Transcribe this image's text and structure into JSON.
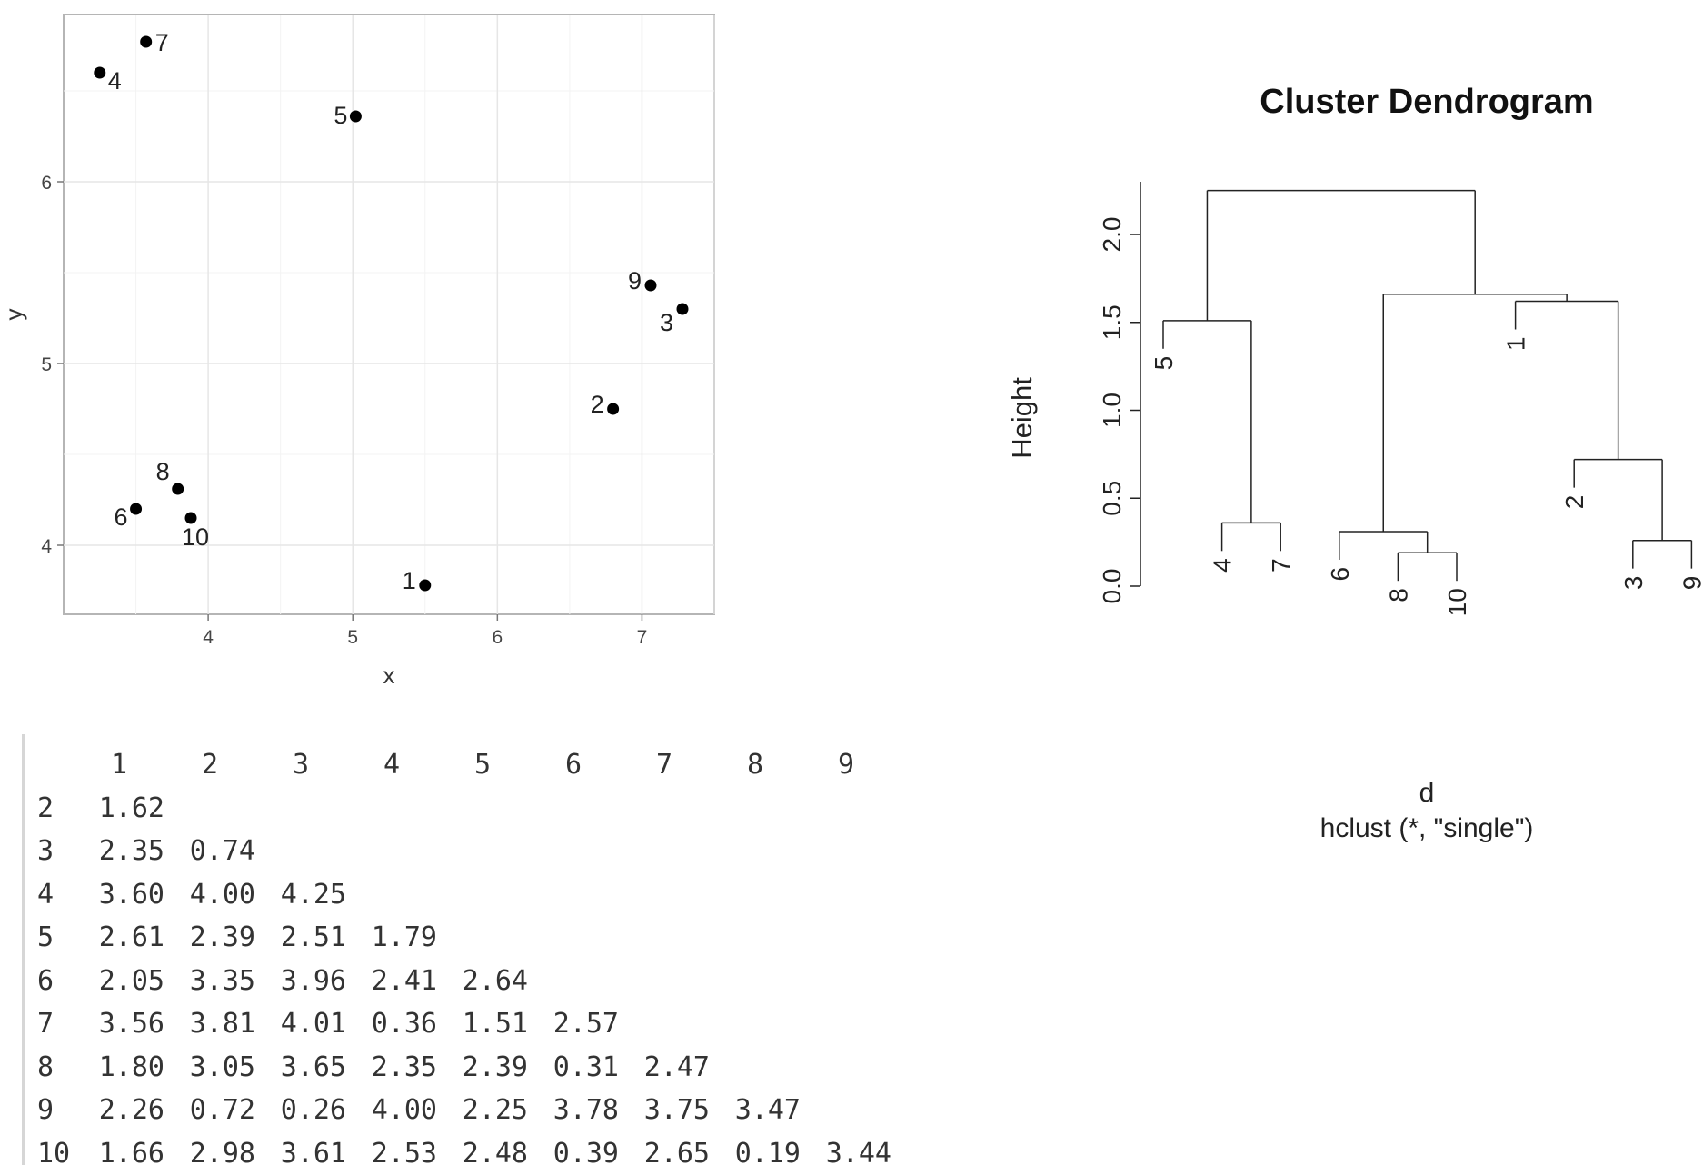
{
  "chart_data": [
    {
      "type": "scatter",
      "xlabel": "x",
      "ylabel": "y",
      "xlim": [
        3.0,
        7.5
      ],
      "ylim": [
        3.62,
        6.92
      ],
      "x_ticks": [
        "4",
        "5",
        "6",
        "7"
      ],
      "y_ticks": [
        "4",
        "5",
        "6"
      ],
      "grid": true,
      "points": [
        {
          "label": "1",
          "x": 5.5,
          "y": 3.78
        },
        {
          "label": "2",
          "x": 6.8,
          "y": 4.75
        },
        {
          "label": "3",
          "x": 7.28,
          "y": 5.3
        },
        {
          "label": "4",
          "x": 3.25,
          "y": 6.6
        },
        {
          "label": "5",
          "x": 5.02,
          "y": 6.36
        },
        {
          "label": "6",
          "x": 3.5,
          "y": 4.2
        },
        {
          "label": "7",
          "x": 3.57,
          "y": 6.77
        },
        {
          "label": "8",
          "x": 3.79,
          "y": 4.31
        },
        {
          "label": "9",
          "x": 7.06,
          "y": 5.43
        },
        {
          "label": "10",
          "x": 3.88,
          "y": 4.15
        }
      ]
    },
    {
      "type": "dendrogram",
      "title": "Cluster Dendrogram",
      "ylabel": "Height",
      "xlabel": "d",
      "subtitle": "hclust (*, \"single\")",
      "ylim": [
        0,
        2.3
      ],
      "y_ticks": [
        "0.0",
        "0.5",
        "1.0",
        "1.5",
        "2.0"
      ],
      "leaf_order": [
        "5",
        "4",
        "7",
        "6",
        "8",
        "10",
        "1",
        "2",
        "3",
        "9"
      ],
      "merges": [
        {
          "left": "8",
          "right": "10",
          "height": 0.19
        },
        {
          "left": "3",
          "right": "9",
          "height": 0.26
        },
        {
          "left": "6",
          "right": "8+10",
          "height": 0.31
        },
        {
          "left": "4",
          "right": "7",
          "height": 0.36
        },
        {
          "left": "2",
          "right": "3+9",
          "height": 0.72
        },
        {
          "left": "5",
          "right": "4+7",
          "height": 1.51
        },
        {
          "left": "1",
          "right": "2+3+9",
          "height": 1.62
        },
        {
          "left": "6+8+10",
          "right": "1+2+3+9",
          "height": 1.66
        },
        {
          "left": "5+4+7",
          "right": "6+8+10+1+2+3+9",
          "height": 2.25
        }
      ]
    },
    {
      "type": "table",
      "columns": [
        "1",
        "2",
        "3",
        "4",
        "5",
        "6",
        "7",
        "8",
        "9"
      ],
      "rows": [
        {
          "label": "2",
          "values": [
            "1.62"
          ]
        },
        {
          "label": "3",
          "values": [
            "2.35",
            "0.74"
          ]
        },
        {
          "label": "4",
          "values": [
            "3.60",
            "4.00",
            "4.25"
          ]
        },
        {
          "label": "5",
          "values": [
            "2.61",
            "2.39",
            "2.51",
            "1.79"
          ]
        },
        {
          "label": "6",
          "values": [
            "2.05",
            "3.35",
            "3.96",
            "2.41",
            "2.64"
          ]
        },
        {
          "label": "7",
          "values": [
            "3.56",
            "3.81",
            "4.01",
            "0.36",
            "1.51",
            "2.57"
          ]
        },
        {
          "label": "8",
          "values": [
            "1.80",
            "3.05",
            "3.65",
            "2.35",
            "2.39",
            "0.31",
            "2.47"
          ]
        },
        {
          "label": "9",
          "values": [
            "2.26",
            "0.72",
            "0.26",
            "4.00",
            "2.25",
            "3.78",
            "3.75",
            "3.47"
          ]
        },
        {
          "label": "10",
          "values": [
            "1.66",
            "2.98",
            "3.61",
            "2.53",
            "2.48",
            "0.39",
            "2.65",
            "0.19",
            "3.44"
          ]
        }
      ]
    }
  ]
}
